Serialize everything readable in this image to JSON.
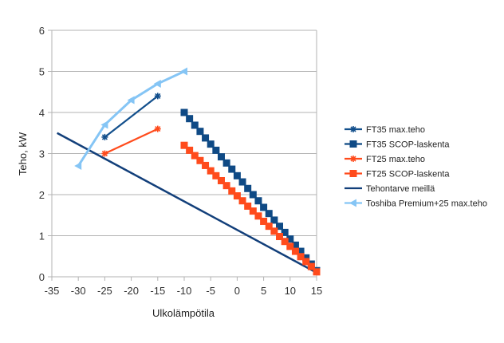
{
  "chart_data": {
    "type": "line",
    "title": "",
    "xlabel": "Ulkolämpötila",
    "ylabel": "Teho, kW",
    "xlim": [
      -35,
      15
    ],
    "ylim": [
      0,
      6
    ],
    "x_ticks": [
      "-35",
      "-30",
      "-25",
      "-20",
      "-15",
      "-10",
      "-5",
      "0",
      "5",
      "10",
      "15"
    ],
    "y_ticks": [
      "0",
      "1",
      "2",
      "3",
      "4",
      "5",
      "6"
    ],
    "grid": true,
    "legend_position": "right",
    "series": [
      {
        "name": "FT35 max.teho",
        "color": "#124f8c",
        "marker": "star",
        "line": true,
        "x": [
          -25,
          -15
        ],
        "y": [
          3.4,
          4.4
        ]
      },
      {
        "name": "FT35 SCOP-laskenta",
        "color": "#0f4a85",
        "marker": "square",
        "line": true,
        "x": [
          -10,
          -9,
          -8,
          -7,
          -6,
          -5,
          -4,
          -3,
          -2,
          -1,
          0,
          1,
          2,
          3,
          4,
          5,
          6,
          7,
          8,
          9,
          10,
          11,
          12,
          13,
          14,
          15
        ],
        "y": [
          4.0,
          3.85,
          3.69,
          3.54,
          3.38,
          3.23,
          3.08,
          2.92,
          2.77,
          2.62,
          2.46,
          2.31,
          2.15,
          2.0,
          1.85,
          1.69,
          1.54,
          1.38,
          1.23,
          1.08,
          0.92,
          0.77,
          0.62,
          0.46,
          0.31,
          0.15
        ]
      },
      {
        "name": "FT25 max.teho",
        "color": "#ff4b1c",
        "marker": "star",
        "line": true,
        "x": [
          -25,
          -15
        ],
        "y": [
          3.0,
          3.6
        ]
      },
      {
        "name": "FT25 SCOP-laskenta",
        "color": "#ff4b1c",
        "marker": "square",
        "line": true,
        "x": [
          -10,
          -9,
          -8,
          -7,
          -6,
          -5,
          -4,
          -3,
          -2,
          -1,
          0,
          1,
          2,
          3,
          4,
          5,
          6,
          7,
          8,
          9,
          10,
          11,
          12,
          13,
          14,
          15
        ],
        "y": [
          3.2,
          3.08,
          2.95,
          2.83,
          2.71,
          2.58,
          2.46,
          2.34,
          2.22,
          2.09,
          1.97,
          1.85,
          1.72,
          1.6,
          1.48,
          1.35,
          1.23,
          1.11,
          0.98,
          0.86,
          0.74,
          0.62,
          0.49,
          0.37,
          0.25,
          0.12
        ]
      },
      {
        "name": "Tehontarve meillä",
        "color": "#123f7a",
        "marker": "none",
        "line": true,
        "x": [
          -34,
          15
        ],
        "y": [
          3.5,
          0.1
        ]
      },
      {
        "name": "Toshiba Premium+25 max.teho",
        "color": "#85c5f5",
        "marker": "triangle",
        "line": true,
        "x": [
          -30,
          -25,
          -20,
          -15,
          -10
        ],
        "y": [
          2.7,
          3.7,
          4.3,
          4.7,
          5.0
        ]
      }
    ]
  }
}
